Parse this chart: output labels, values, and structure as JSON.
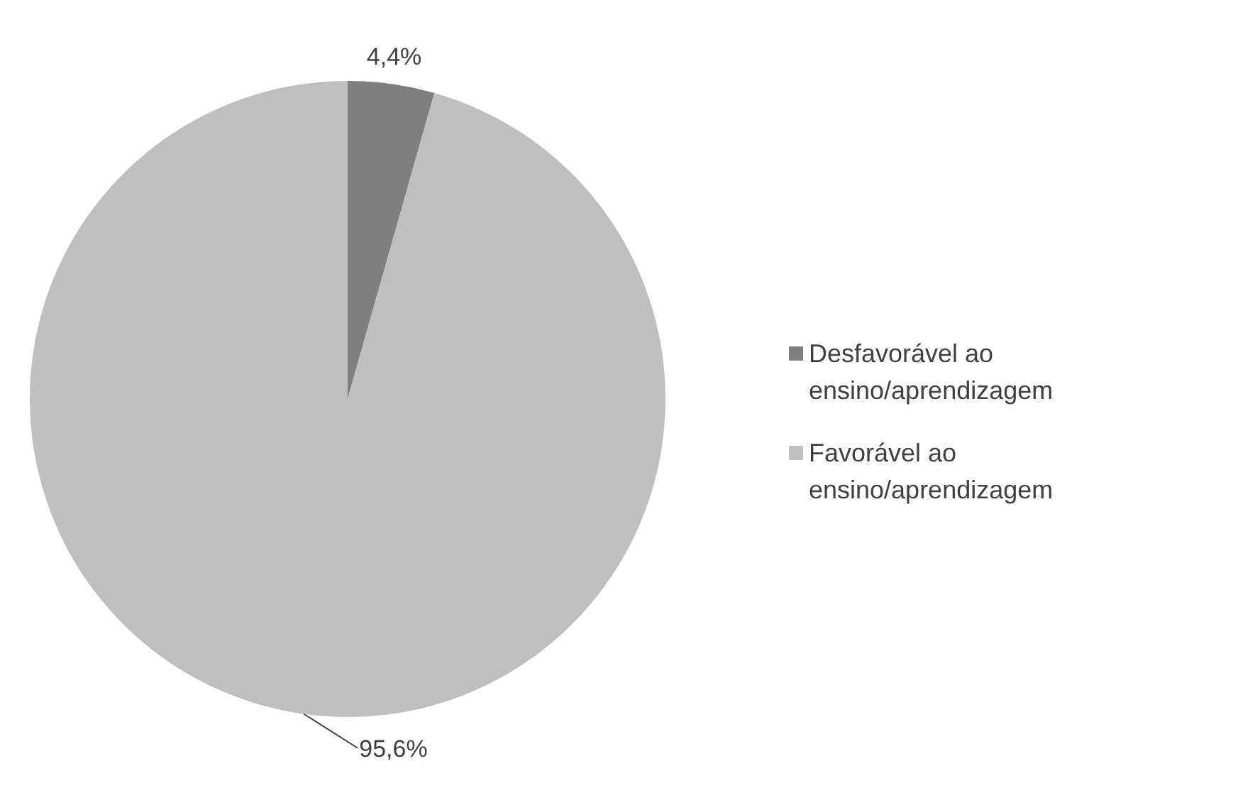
{
  "chart_data": {
    "type": "pie",
    "categories": [
      "Desfavorável ao ensino/aprendizagem",
      "Favorável ao ensino/aprendizagem"
    ],
    "values": [
      4.4,
      95.6
    ],
    "colors": [
      "#7f7f7f",
      "#bfbfbf"
    ],
    "value_labels": [
      "4,4%",
      "95,6%"
    ],
    "legend": "right"
  }
}
